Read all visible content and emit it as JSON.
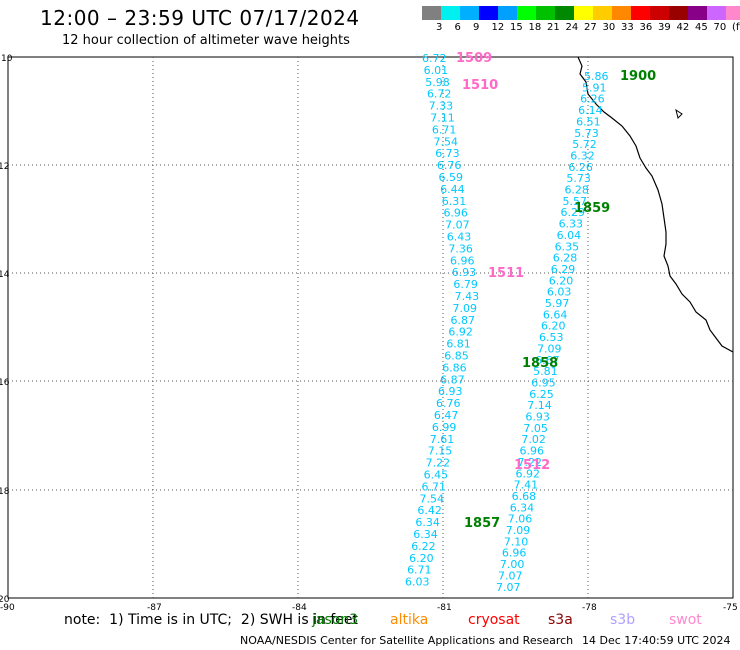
{
  "header": {
    "title": "12:00 – 23:59 UTC 07/17/2024",
    "subtitle": "12 hour collection of altimeter wave heights"
  },
  "legend": {
    "colors": [
      "#808080",
      "#00f0f0",
      "#00b0ff",
      "#0000ff",
      "#00a0ff",
      "#00ff00",
      "#00c000",
      "#008800",
      "#ffff00",
      "#ffcc00",
      "#ff8800",
      "#ff0000",
      "#cc0000",
      "#990000",
      "#880088",
      "#cc66ff",
      "#ff88cc",
      "#000000"
    ],
    "labels": [
      "3",
      "6",
      "9",
      "12",
      "15",
      "18",
      "21",
      "24",
      "27",
      "30",
      "33",
      "36",
      "39",
      "42",
      "45",
      "70",
      "(ft)"
    ]
  },
  "axes": {
    "x_labels": [
      "-90",
      "-87",
      "-84",
      "-81",
      "-78",
      "-75"
    ],
    "y_labels": [
      "10",
      "12",
      "14",
      "16",
      "18",
      "20"
    ]
  },
  "tracks": {
    "track_a_color": "#00c8ff",
    "track_a": [
      "6.72",
      "6.01",
      "5.98",
      "6.72",
      "7.33",
      "7.11",
      "6.71",
      "7.54",
      "6.73",
      "6.76",
      "6.59",
      "6.44",
      "6.31",
      "6.96",
      "7.07",
      "6.43",
      "7.36",
      "6.96",
      "6.93",
      "6.79",
      "7.43",
      "7.09",
      "6.87",
      "6.92",
      "6.81",
      "6.85",
      "6.86",
      "6.87",
      "6.93",
      "6.76",
      "6.47",
      "6.99",
      "7.61",
      "7.15",
      "7.22",
      "6.45",
      "6.71",
      "7.54",
      "6.42",
      "6.34",
      "6.34",
      "6.22",
      "6.20",
      "6.71",
      "6.03"
    ],
    "track_b": [
      "5.86",
      "5.91",
      "6.26",
      "6.14",
      "6.51",
      "5.73",
      "5.72",
      "6.32",
      "6.26",
      "5.73",
      "6.28",
      "5.57",
      "6.29",
      "6.33",
      "6.04",
      "6.35",
      "6.28",
      "6.29",
      "6.20",
      "6.03",
      "5.97",
      "6.64",
      "6.20",
      "6.53",
      "7.09",
      "6.67",
      "5.81",
      "6.95",
      "6.25",
      "7.14",
      "6.93",
      "7.05",
      "7.02",
      "6.96",
      "7.22",
      "6.92",
      "7.41",
      "6.68",
      "6.34",
      "7.06",
      "7.09",
      "7.10",
      "6.96",
      "7.00",
      "7.07",
      "7.07"
    ],
    "time_labels": [
      {
        "text": "1509",
        "color": "#ff69c8"
      },
      {
        "text": "1510",
        "color": "#ff69c8"
      },
      {
        "text": "1511",
        "color": "#ff69c8"
      },
      {
        "text": "1512",
        "color": "#ff69c8"
      },
      {
        "text": "1900",
        "color": "#008000"
      },
      {
        "text": "1859",
        "color": "#008000"
      },
      {
        "text": "1858",
        "color": "#008000"
      },
      {
        "text": "1857",
        "color": "#008000"
      }
    ]
  },
  "note": "note:  1) Time is in UTC;  2) SWH is in feet",
  "satellites": [
    {
      "name": "jason3",
      "color": "#008000"
    },
    {
      "name": "altika",
      "color": "#ff8c00"
    },
    {
      "name": "cryosat",
      "color": "#ff0000"
    },
    {
      "name": "s3a",
      "color": "#8b0000"
    },
    {
      "name": "s3b",
      "color": "#b0a0ff"
    },
    {
      "name": "swot",
      "color": "#ff88cc"
    }
  ],
  "footer": {
    "left": "NOAA/NESDIS Center for Satellite Applications and Research",
    "right": "14 Dec 17:40:59 UTC 2024"
  }
}
